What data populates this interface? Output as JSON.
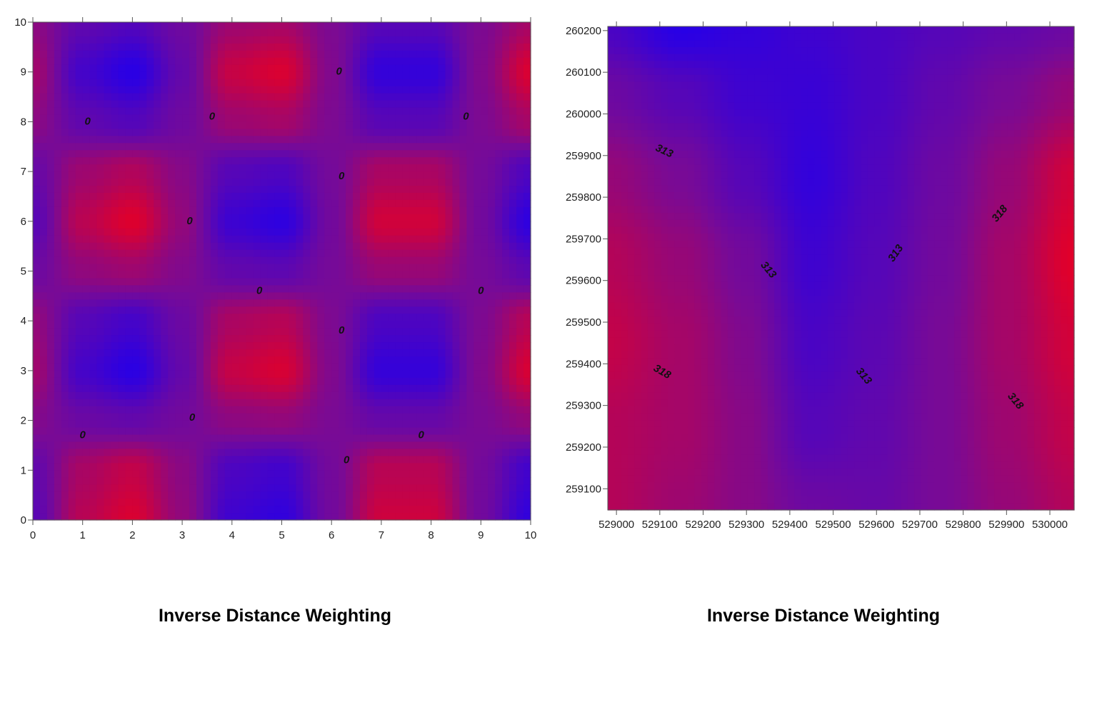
{
  "chart_data": [
    {
      "type": "heatmap",
      "subtype": "filled contour",
      "title": "Inverse Distance Weighting",
      "xlim": [
        0,
        10
      ],
      "ylim": [
        0,
        10
      ],
      "x_ticks": [
        "0",
        "1",
        "2",
        "3",
        "4",
        "5",
        "6",
        "7",
        "8",
        "9",
        "10"
      ],
      "y_ticks": [
        "0",
        "1",
        "2",
        "3",
        "4",
        "5",
        "6",
        "7",
        "8",
        "9",
        "10"
      ],
      "grid_x": [
        0,
        1,
        2,
        3,
        4,
        5,
        6,
        7,
        8,
        9,
        10
      ],
      "grid_y": [
        0,
        1,
        2,
        3,
        4,
        5,
        6,
        7,
        8,
        9,
        10
      ],
      "values": [
        [
          -0.38,
          0.61,
          0.93,
          0.24,
          -0.71,
          -0.88,
          -0.08,
          0.81,
          0.81,
          -0.08,
          -0.88
        ],
        [
          -0.29,
          0.47,
          0.72,
          0.18,
          -0.55,
          -0.68,
          -0.06,
          0.62,
          0.62,
          -0.06,
          -0.68
        ],
        [
          0.11,
          -0.17,
          -0.26,
          -0.07,
          0.2,
          0.25,
          0.02,
          -0.23,
          -0.23,
          0.02,
          0.25
        ],
        [
          0.39,
          -0.63,
          -0.96,
          -0.25,
          0.74,
          0.91,
          0.08,
          -0.83,
          -0.83,
          0.08,
          0.91
        ],
        [
          0.26,
          -0.42,
          -0.64,
          -0.16,
          0.49,
          0.6,
          0.05,
          -0.55,
          -0.55,
          0.05,
          0.6
        ],
        [
          -0.15,
          0.24,
          0.36,
          0.09,
          -0.28,
          -0.34,
          -0.03,
          0.31,
          0.31,
          -0.03,
          -0.34
        ],
        [
          -0.4,
          0.63,
          0.97,
          0.25,
          -0.74,
          -0.92,
          -0.08,
          0.84,
          0.84,
          -0.08,
          -0.92
        ],
        [
          -0.22,
          0.36,
          0.55,
          0.14,
          -0.42,
          -0.52,
          -0.04,
          0.48,
          0.48,
          -0.04,
          -0.52
        ],
        [
          0.19,
          -0.3,
          -0.46,
          -0.12,
          0.35,
          0.44,
          0.04,
          -0.4,
          -0.4,
          0.04,
          0.44
        ],
        [
          0.4,
          -0.64,
          -0.98,
          -0.25,
          0.75,
          0.93,
          0.08,
          -0.85,
          -0.85,
          0.08,
          0.93
        ],
        [
          0.19,
          -0.3,
          -0.46,
          -0.12,
          0.35,
          0.44,
          0.04,
          -0.4,
          -0.4,
          0.04,
          0.44
        ]
      ],
      "vrange": [
        -1,
        1
      ],
      "colormap": {
        "low": "#2800e6",
        "mid": "#780a96",
        "high": "#e1002a"
      },
      "contour_labels": [
        {
          "text": "0",
          "x": 1.1,
          "y": 8.0
        },
        {
          "text": "0",
          "x": 3.6,
          "y": 8.1
        },
        {
          "text": "0",
          "x": 6.15,
          "y": 9.0
        },
        {
          "text": "0",
          "x": 8.7,
          "y": 8.1
        },
        {
          "text": "0",
          "x": 6.2,
          "y": 6.9
        },
        {
          "text": "0",
          "x": 3.15,
          "y": 6.0
        },
        {
          "text": "0",
          "x": 4.55,
          "y": 4.6
        },
        {
          "text": "0",
          "x": 9.0,
          "y": 4.6
        },
        {
          "text": "0",
          "x": 6.2,
          "y": 3.8
        },
        {
          "text": "0",
          "x": 3.2,
          "y": 2.05
        },
        {
          "text": "0",
          "x": 1.0,
          "y": 1.7
        },
        {
          "text": "0",
          "x": 7.8,
          "y": 1.7
        },
        {
          "text": "0",
          "x": 6.3,
          "y": 1.2
        }
      ]
    },
    {
      "type": "heatmap",
      "subtype": "filled contour",
      "title": "Inverse Distance Weighting",
      "xlim": [
        528980,
        530056
      ],
      "ylim": [
        259049,
        260210
      ],
      "x_ticks": [
        "529000",
        "529100",
        "529200",
        "529300",
        "529400",
        "529500",
        "529600",
        "529700",
        "529800",
        "529900",
        "530000"
      ],
      "y_ticks": [
        "259100",
        "259200",
        "259300",
        "259400",
        "259500",
        "259600",
        "259700",
        "259800",
        "259900",
        "260000",
        "260100",
        "260200"
      ],
      "grid_x": [
        528980,
        529150,
        529300,
        529450,
        529600,
        529750,
        529900,
        530056
      ],
      "grid_y": [
        259049,
        259250,
        259450,
        259650,
        259850,
        260050,
        260210
      ],
      "values": [
        [
          319,
          317.5,
          316,
          314,
          313.5,
          315,
          317,
          319
        ],
        [
          319,
          318,
          316,
          312,
          313,
          315,
          317.5,
          320
        ],
        [
          320,
          318,
          315.5,
          311,
          312.5,
          315,
          318,
          321
        ],
        [
          319,
          317,
          314.5,
          310,
          312,
          314.5,
          318,
          322
        ],
        [
          317,
          315,
          312,
          309,
          311.5,
          314,
          317,
          321
        ],
        [
          314,
          312,
          310,
          309.5,
          311,
          313,
          315,
          317
        ],
        [
          311,
          308,
          309,
          310,
          311,
          312,
          313,
          314
        ]
      ],
      "vrange": [
        308,
        322
      ],
      "colormap": {
        "low": "#2800e6",
        "mid": "#780a96",
        "high": "#e1002a"
      },
      "contour_labels": [
        {
          "text": "313",
          "x": 529110,
          "y": 259910,
          "angle": 25
        },
        {
          "text": "313",
          "x": 529350,
          "y": 259625,
          "angle": 50
        },
        {
          "text": "313",
          "x": 529645,
          "y": 259665,
          "angle": -55
        },
        {
          "text": "313",
          "x": 529570,
          "y": 259370,
          "angle": 50
        },
        {
          "text": "318",
          "x": 529105,
          "y": 259380,
          "angle": 30
        },
        {
          "text": "318",
          "x": 529885,
          "y": 259760,
          "angle": -50
        },
        {
          "text": "318",
          "x": 529920,
          "y": 259310,
          "angle": 50
        }
      ]
    }
  ]
}
